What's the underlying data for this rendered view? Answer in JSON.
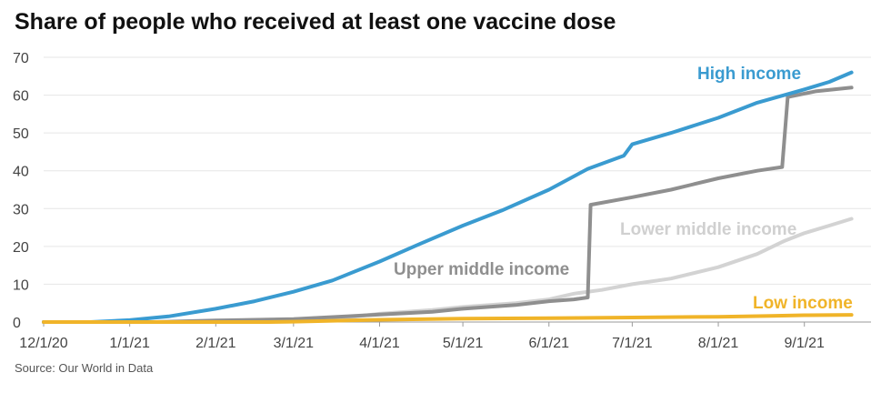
{
  "title": "Share of people who received at least one vaccine dose",
  "source": "Source: Our World in Data",
  "chart_data": {
    "type": "line",
    "title": "Share of people who received at least one vaccine dose",
    "xlabel": "",
    "ylabel": "",
    "x_range": [
      "2020-12-01",
      "2021-09-25"
    ],
    "ylim": [
      0,
      70
    ],
    "y_ticks": [
      0,
      10,
      20,
      30,
      40,
      50,
      60,
      70
    ],
    "x_ticks": [
      {
        "date": "2020-12-01",
        "label": "12/1/20"
      },
      {
        "date": "2021-01-01",
        "label": "1/1/21"
      },
      {
        "date": "2021-02-01",
        "label": "2/1/21"
      },
      {
        "date": "2021-03-01",
        "label": "3/1/21"
      },
      {
        "date": "2021-04-01",
        "label": "4/1/21"
      },
      {
        "date": "2021-05-01",
        "label": "5/1/21"
      },
      {
        "date": "2021-06-01",
        "label": "6/1/21"
      },
      {
        "date": "2021-07-01",
        "label": "7/1/21"
      },
      {
        "date": "2021-08-01",
        "label": "8/1/21"
      },
      {
        "date": "2021-09-01",
        "label": "9/1/21"
      }
    ],
    "grid": "horizontal",
    "legend": "inline labels",
    "series": [
      {
        "name": "Lower middle income",
        "color": "#d3d3d3",
        "points": [
          [
            "2020-12-01",
            0
          ],
          [
            "2021-01-15",
            0
          ],
          [
            "2021-02-01",
            0.2
          ],
          [
            "2021-03-01",
            0.6
          ],
          [
            "2021-03-20",
            1.2
          ],
          [
            "2021-04-01",
            2.2
          ],
          [
            "2021-04-20",
            3.2
          ],
          [
            "2021-05-01",
            4.0
          ],
          [
            "2021-05-20",
            5.0
          ],
          [
            "2021-06-01",
            6.0
          ],
          [
            "2021-06-10",
            7.5
          ],
          [
            "2021-06-20",
            8.5
          ],
          [
            "2021-07-01",
            10.0
          ],
          [
            "2021-07-15",
            11.5
          ],
          [
            "2021-08-01",
            14.5
          ],
          [
            "2021-08-15",
            18.0
          ],
          [
            "2021-08-25",
            21.5
          ],
          [
            "2021-09-01",
            23.5
          ],
          [
            "2021-09-10",
            25.5
          ],
          [
            "2021-09-18",
            27.3
          ]
        ]
      },
      {
        "name": "Upper middle income",
        "color": "#8f8f8f",
        "points": [
          [
            "2020-12-01",
            0
          ],
          [
            "2021-01-10",
            0
          ],
          [
            "2021-02-01",
            0.4
          ],
          [
            "2021-03-01",
            0.8
          ],
          [
            "2021-03-20",
            1.5
          ],
          [
            "2021-04-01",
            2.0
          ],
          [
            "2021-04-20",
            2.7
          ],
          [
            "2021-05-01",
            3.5
          ],
          [
            "2021-05-20",
            4.5
          ],
          [
            "2021-06-01",
            5.5
          ],
          [
            "2021-06-10",
            6.0
          ],
          [
            "2021-06-15",
            6.5
          ],
          [
            "2021-06-16",
            31.0
          ],
          [
            "2021-07-01",
            33.0
          ],
          [
            "2021-07-15",
            35.0
          ],
          [
            "2021-08-01",
            38.0
          ],
          [
            "2021-08-15",
            40.0
          ],
          [
            "2021-08-24",
            41.0
          ],
          [
            "2021-08-26",
            59.5
          ],
          [
            "2021-09-05",
            61.0
          ],
          [
            "2021-09-18",
            62.0
          ]
        ]
      },
      {
        "name": "High income",
        "color": "#3a9bd0",
        "points": [
          [
            "2020-12-01",
            0
          ],
          [
            "2020-12-18",
            0
          ],
          [
            "2021-01-01",
            0.5
          ],
          [
            "2021-01-15",
            1.5
          ],
          [
            "2021-02-01",
            3.5
          ],
          [
            "2021-02-15",
            5.5
          ],
          [
            "2021-03-01",
            8.0
          ],
          [
            "2021-03-15",
            11.0
          ],
          [
            "2021-04-01",
            16.0
          ],
          [
            "2021-04-15",
            20.5
          ],
          [
            "2021-05-01",
            25.5
          ],
          [
            "2021-05-15",
            29.5
          ],
          [
            "2021-06-01",
            35.0
          ],
          [
            "2021-06-15",
            40.5
          ],
          [
            "2021-06-28",
            44.0
          ],
          [
            "2021-07-01",
            47.0
          ],
          [
            "2021-07-15",
            50.0
          ],
          [
            "2021-08-01",
            54.0
          ],
          [
            "2021-08-15",
            58.0
          ],
          [
            "2021-09-01",
            61.5
          ],
          [
            "2021-09-10",
            63.5
          ],
          [
            "2021-09-18",
            66.0
          ]
        ]
      },
      {
        "name": "Low income",
        "color": "#f0b429",
        "points": [
          [
            "2020-12-01",
            0
          ],
          [
            "2021-02-20",
            0
          ],
          [
            "2021-03-01",
            0.1
          ],
          [
            "2021-04-01",
            0.6
          ],
          [
            "2021-05-01",
            0.9
          ],
          [
            "2021-06-01",
            1.0
          ],
          [
            "2021-07-01",
            1.2
          ],
          [
            "2021-08-01",
            1.4
          ],
          [
            "2021-08-20",
            1.6
          ],
          [
            "2021-09-01",
            1.8
          ],
          [
            "2021-09-18",
            1.9
          ]
        ]
      }
    ],
    "annotations": [
      {
        "series": "High income",
        "text": "High income"
      },
      {
        "series": "Upper middle income",
        "text": "Upper middle income"
      },
      {
        "series": "Lower middle income",
        "text": "Lower middle income"
      },
      {
        "series": "Low income",
        "text": "Low income"
      }
    ]
  }
}
